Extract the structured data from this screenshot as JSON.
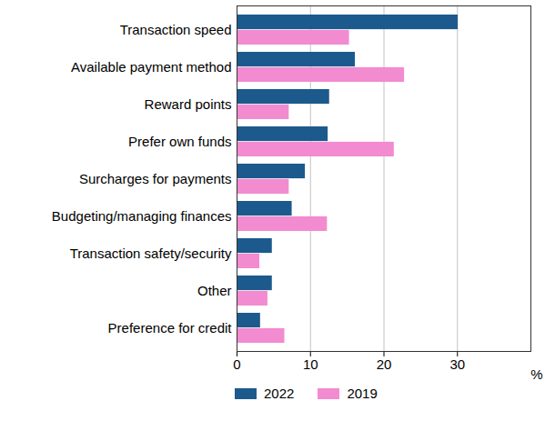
{
  "chart_data": {
    "type": "bar",
    "orientation": "horizontal",
    "categories": [
      "Transaction speed",
      "Available payment method",
      "Reward points",
      "Prefer own funds",
      "Surcharges for payments",
      "Budgeting/managing finances",
      "Transaction safety/security",
      "Other",
      "Preference for credit"
    ],
    "series": [
      {
        "name": "2022",
        "color": "#1c5a8d",
        "values": [
          30.1,
          16.1,
          12.6,
          12.4,
          9.3,
          7.5,
          4.8,
          4.8,
          3.2
        ]
      },
      {
        "name": "2019",
        "color": "#f28bd0",
        "values": [
          15.3,
          22.8,
          7.1,
          21.4,
          7.1,
          12.3,
          3.1,
          4.2,
          6.5
        ]
      }
    ],
    "xlabel": "%",
    "xlim": [
      0,
      40
    ],
    "xticks": [
      0,
      10,
      20,
      30
    ],
    "grid": true,
    "legend": "bottom"
  }
}
